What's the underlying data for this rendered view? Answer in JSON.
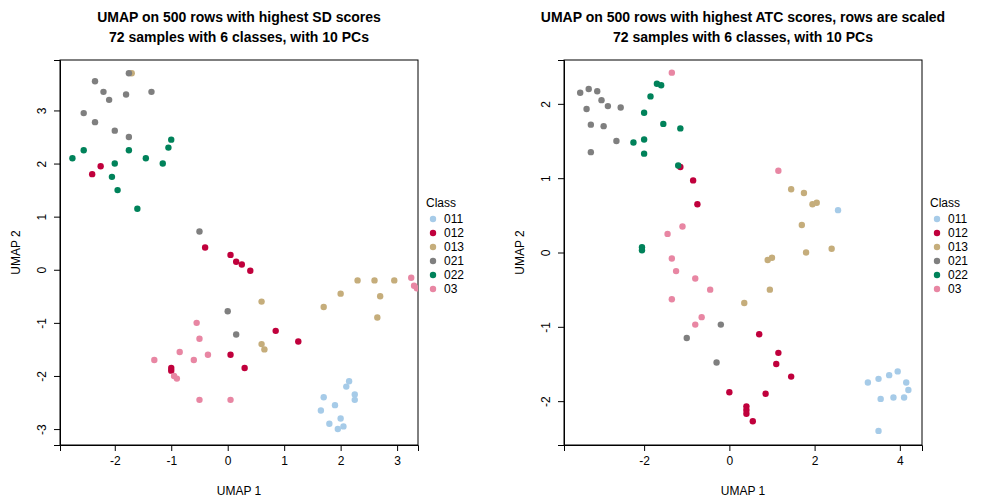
{
  "chart_data": [
    {
      "type": "scatter",
      "title": "UMAP on 500 rows with highest SD scores",
      "subtitle": "72 samples with 6 classes, with 10 PCs",
      "x_label": "UMAP 1",
      "y_label": "UMAP 2",
      "legend": "right",
      "legend_title": "Class",
      "xlim": [
        -2.97,
        3.37
      ],
      "ylim": [
        -3.3,
        3.95
      ],
      "xticks": [
        -2,
        -1,
        0,
        1,
        2,
        3
      ],
      "yticks": [
        -3,
        -2,
        -1,
        0,
        1,
        2,
        3
      ],
      "series": [
        {
          "name": "011",
          "color": "#a6cbe8",
          "marker": "circle",
          "x": [
            1.7,
            2.1,
            2.15,
            2.25,
            2.25,
            1.9,
            1.65,
            2.0,
            1.8,
            2.05,
            1.95
          ],
          "values": [
            -2.4,
            -2.2,
            -2.1,
            -2.35,
            -2.45,
            -2.55,
            -2.65,
            -2.8,
            -2.9,
            -2.95,
            -3.0
          ]
        },
        {
          "name": "012",
          "color": "#c0003c",
          "marker": "circle",
          "x": [
            -2.4,
            -2.25,
            -0.4,
            0.05,
            0.15,
            0.25,
            0.4,
            0.85,
            1.25,
            0.3,
            0.05,
            -1.0,
            -1.0
          ],
          "values": [
            1.8,
            1.95,
            0.42,
            0.28,
            0.15,
            0.1,
            -0.02,
            -1.15,
            -1.35,
            -1.85,
            -1.6,
            -1.85,
            -1.9
          ]
        },
        {
          "name": "013",
          "color": "#c5ad7b",
          "marker": "circle",
          "x": [
            -1.7,
            2.0,
            2.3,
            2.6,
            2.95,
            2.7,
            2.65,
            1.7,
            0.6,
            0.6,
            0.65
          ],
          "values": [
            3.7,
            -0.45,
            -0.2,
            -0.2,
            -0.2,
            -0.5,
            -0.9,
            -0.7,
            -0.6,
            -1.4,
            -1.5
          ]
        },
        {
          "name": "021",
          "color": "#7f7f7f",
          "marker": "circle",
          "x": [
            -2.35,
            -2.2,
            -2.1,
            -1.75,
            -1.8,
            -1.35,
            -2.55,
            -2.35,
            -2.0,
            -1.75,
            -0.5,
            0.0,
            0.15
          ],
          "values": [
            3.55,
            3.35,
            3.2,
            3.7,
            3.3,
            3.35,
            2.95,
            2.78,
            2.62,
            2.5,
            0.72,
            -0.78,
            -1.22
          ]
        },
        {
          "name": "022",
          "color": "#00825a",
          "marker": "circle",
          "x": [
            -2.75,
            -2.55,
            -2.0,
            -2.05,
            -1.95,
            -1.75,
            -1.45,
            -1.15,
            -1.05,
            -1.0,
            -1.6
          ],
          "values": [
            2.1,
            2.25,
            2.0,
            1.75,
            1.5,
            2.25,
            2.1,
            2.0,
            2.3,
            2.45,
            1.15
          ]
        },
        {
          "name": "03",
          "color": "#e886a3",
          "marker": "circle",
          "x": [
            3.25,
            3.3,
            3.35,
            -1.3,
            -0.95,
            -0.9,
            -0.85,
            -0.6,
            -0.55,
            -0.5,
            -0.35,
            -0.5,
            0.05
          ],
          "values": [
            -0.15,
            -0.3,
            -0.35,
            -1.7,
            -2.0,
            -2.05,
            -1.55,
            -1.7,
            -1.0,
            -1.3,
            -1.6,
            -2.45,
            -2.45
          ]
        }
      ]
    },
    {
      "type": "scatter",
      "title": "UMAP on 500 rows with highest ATC scores, rows are scaled",
      "subtitle": "72 samples with 6 classes, with 10 PCs",
      "x_label": "UMAP 1",
      "y_label": "UMAP 2",
      "legend": "right",
      "legend_title": "Class",
      "xlim": [
        -3.88,
        4.52
      ],
      "ylim": [
        -2.59,
        2.59
      ],
      "xticks": [
        -2,
        0,
        2,
        4
      ],
      "yticks": [
        -2,
        -1,
        0,
        1,
        2
      ],
      "series": [
        {
          "name": "011",
          "color": "#a6cbe8",
          "marker": "circle",
          "x": [
            2.55,
            3.25,
            3.5,
            3.75,
            3.95,
            4.15,
            4.2,
            4.1,
            3.85,
            3.55,
            3.5
          ],
          "values": [
            0.57,
            -1.75,
            -1.7,
            -1.65,
            -1.6,
            -1.75,
            -1.85,
            -1.95,
            -1.95,
            -1.97,
            -2.4
          ]
        },
        {
          "name": "012",
          "color": "#c0003c",
          "marker": "circle",
          "x": [
            -1.15,
            -0.85,
            -0.75,
            0.7,
            1.15,
            1.1,
            1.45,
            0.85,
            0.0,
            0.4,
            0.4,
            0.4,
            0.55
          ],
          "values": [
            1.15,
            0.97,
            0.65,
            -1.1,
            -1.35,
            -1.5,
            -1.67,
            -1.9,
            -1.88,
            -2.07,
            -2.12,
            -2.17,
            -2.27
          ]
        },
        {
          "name": "013",
          "color": "#c5ad7b",
          "marker": "circle",
          "x": [
            1.45,
            1.75,
            2.05,
            1.95,
            1.7,
            2.4,
            1.8,
            1.0,
            0.9,
            0.95,
            0.35
          ],
          "values": [
            0.85,
            0.8,
            0.67,
            0.65,
            0.37,
            0.05,
            0.0,
            -0.07,
            -0.1,
            -0.5,
            -0.68
          ]
        },
        {
          "name": "021",
          "color": "#7f7f7f",
          "marker": "circle",
          "x": [
            -3.5,
            -3.3,
            -3.1,
            -3.35,
            -3.0,
            -2.85,
            -2.55,
            -3.25,
            -2.95,
            -2.65,
            -3.25,
            -0.2,
            -1.0,
            -0.3
          ],
          "values": [
            2.15,
            2.2,
            2.17,
            1.93,
            2.05,
            1.97,
            1.95,
            1.72,
            1.7,
            1.5,
            1.35,
            -0.97,
            -1.15,
            -1.48
          ]
        },
        {
          "name": "022",
          "color": "#00825a",
          "marker": "circle",
          "x": [
            -1.7,
            -1.6,
            -1.85,
            -2.0,
            -1.55,
            -1.15,
            -2.0,
            -2.25,
            -2.0,
            -1.2,
            -2.05,
            -2.05
          ],
          "values": [
            2.27,
            2.25,
            2.1,
            1.88,
            1.73,
            1.67,
            1.52,
            1.48,
            1.33,
            1.17,
            0.07,
            0.03
          ]
        },
        {
          "name": "03",
          "color": "#e886a3",
          "marker": "circle",
          "x": [
            -1.35,
            1.15,
            -1.1,
            -1.45,
            -1.35,
            -1.25,
            -0.8,
            -0.45,
            -1.35,
            -0.8,
            -0.65
          ],
          "values": [
            2.42,
            1.1,
            0.35,
            0.25,
            -0.08,
            -0.25,
            -0.35,
            -0.5,
            -0.63,
            -0.97,
            -0.87
          ]
        }
      ]
    }
  ]
}
